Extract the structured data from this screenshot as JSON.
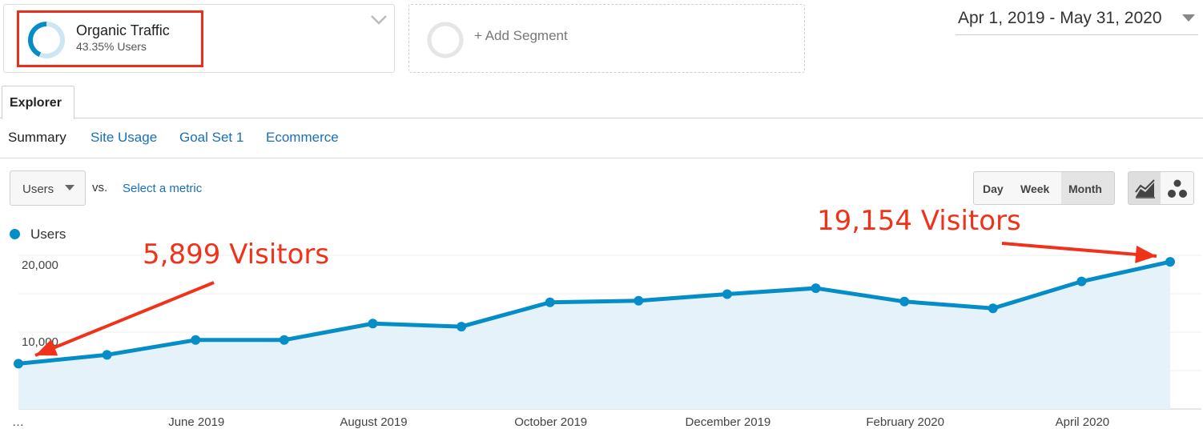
{
  "segments": {
    "active": {
      "title": "Organic Traffic",
      "subtitle": "43.35% Users",
      "percent": 43.35
    },
    "add_label": "+ Add Segment"
  },
  "date_range": {
    "label": "Apr 1, 2019 - May 31, 2020"
  },
  "tabs": [
    {
      "label": "Explorer"
    }
  ],
  "subnav": [
    "Summary",
    "Site Usage",
    "Goal Set 1",
    "Ecommerce"
  ],
  "metric_picker": {
    "primary": "Users",
    "vs": "vs.",
    "secondary_prompt": "Select a metric"
  },
  "granularity": {
    "options": [
      "Day",
      "Week",
      "Month"
    ],
    "selected": "Month"
  },
  "chart_view": {
    "options": [
      "line-chart-icon",
      "motion-chart-icon"
    ],
    "selected": "line-chart-icon"
  },
  "colors": {
    "series": "#058dc7",
    "fill": "#e6f2fa",
    "annotation": "#f1321a",
    "highlight_box": "#e8301c"
  },
  "annotations": [
    {
      "text": "5,899 Visitors",
      "x": "Apr 2019",
      "y": 5899
    },
    {
      "text": "19,154 Visitors",
      "x": "May 2020",
      "y": 19154
    }
  ],
  "chart_data": {
    "type": "area",
    "legend": [
      "Users"
    ],
    "legend_position": "top-left",
    "x": [
      "Apr 2019",
      "May 2019",
      "Jun 2019",
      "Jul 2019",
      "Aug 2019",
      "Sep 2019",
      "Oct 2019",
      "Nov 2019",
      "Dec 2019",
      "Jan 2020",
      "Feb 2020",
      "Mar 2020",
      "Apr 2020",
      "May 2020"
    ],
    "x_tick_labels": [
      "…",
      "June 2019",
      "August 2019",
      "October 2019",
      "December 2019",
      "February 2020",
      "April 2020"
    ],
    "x_tick_months": [
      "Apr 2019",
      "Jun 2019",
      "Aug 2019",
      "Oct 2019",
      "Dec 2019",
      "Feb 2020",
      "Apr 2020"
    ],
    "y_tick_labels": [
      "10,000",
      "20,000"
    ],
    "y_ticks": [
      10000,
      20000
    ],
    "ylim": [
      0,
      20000
    ],
    "grid": true,
    "series": [
      {
        "name": "Users",
        "values": [
          5899,
          7050,
          8980,
          8980,
          11120,
          10720,
          13880,
          14090,
          14950,
          15720,
          13980,
          13100,
          16600,
          19154
        ]
      }
    ]
  }
}
